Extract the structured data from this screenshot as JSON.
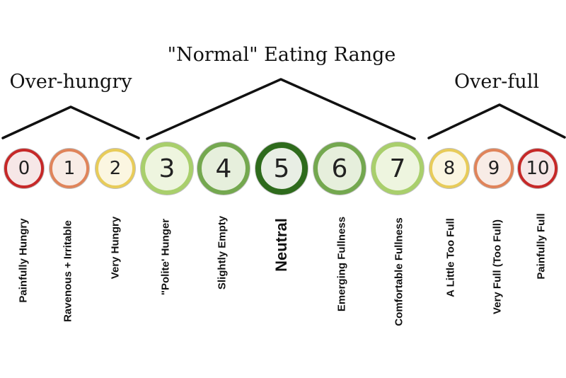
{
  "groups": [
    {
      "id": "over-hungry",
      "title": "Over-hungry"
    },
    {
      "id": "normal",
      "title": "\"Normal\" Eating Range"
    },
    {
      "id": "over-full",
      "title": "Over-full"
    }
  ],
  "scale": [
    {
      "value": "0",
      "label": "Painfully Hungry",
      "ring": "#c62828",
      "fill": "#f6e7e7"
    },
    {
      "value": "1",
      "label": "Ravenous + Irritable",
      "ring": "#e0845a",
      "fill": "#f8ece6"
    },
    {
      "value": "2",
      "label": "Very Hungry",
      "ring": "#e8cc59",
      "fill": "#fbf6e1"
    },
    {
      "value": "3",
      "label": "\"Polite' Hunger",
      "ring": "#a9cf6c",
      "fill": "#eef5df"
    },
    {
      "value": "4",
      "label": "Slightly Empty",
      "ring": "#74a84f",
      "fill": "#e6efdc"
    },
    {
      "value": "5",
      "label": "Neutral",
      "ring": "#2e6b1c",
      "fill": "#e8eee4"
    },
    {
      "value": "6",
      "label": "Emerging Fullness",
      "ring": "#74a84f",
      "fill": "#e6efdc"
    },
    {
      "value": "7",
      "label": "Comfortable Fullness",
      "ring": "#a9cf6c",
      "fill": "#eef5df"
    },
    {
      "value": "8",
      "label": "A Little Too Full",
      "ring": "#e8cc59",
      "fill": "#fbf6e1"
    },
    {
      "value": "9",
      "label": "Very Full (Too Full)",
      "ring": "#e0845a",
      "fill": "#f8ece6"
    },
    {
      "value": "10",
      "label": "Painfully Full",
      "ring": "#c62828",
      "fill": "#f6e7e7"
    }
  ]
}
